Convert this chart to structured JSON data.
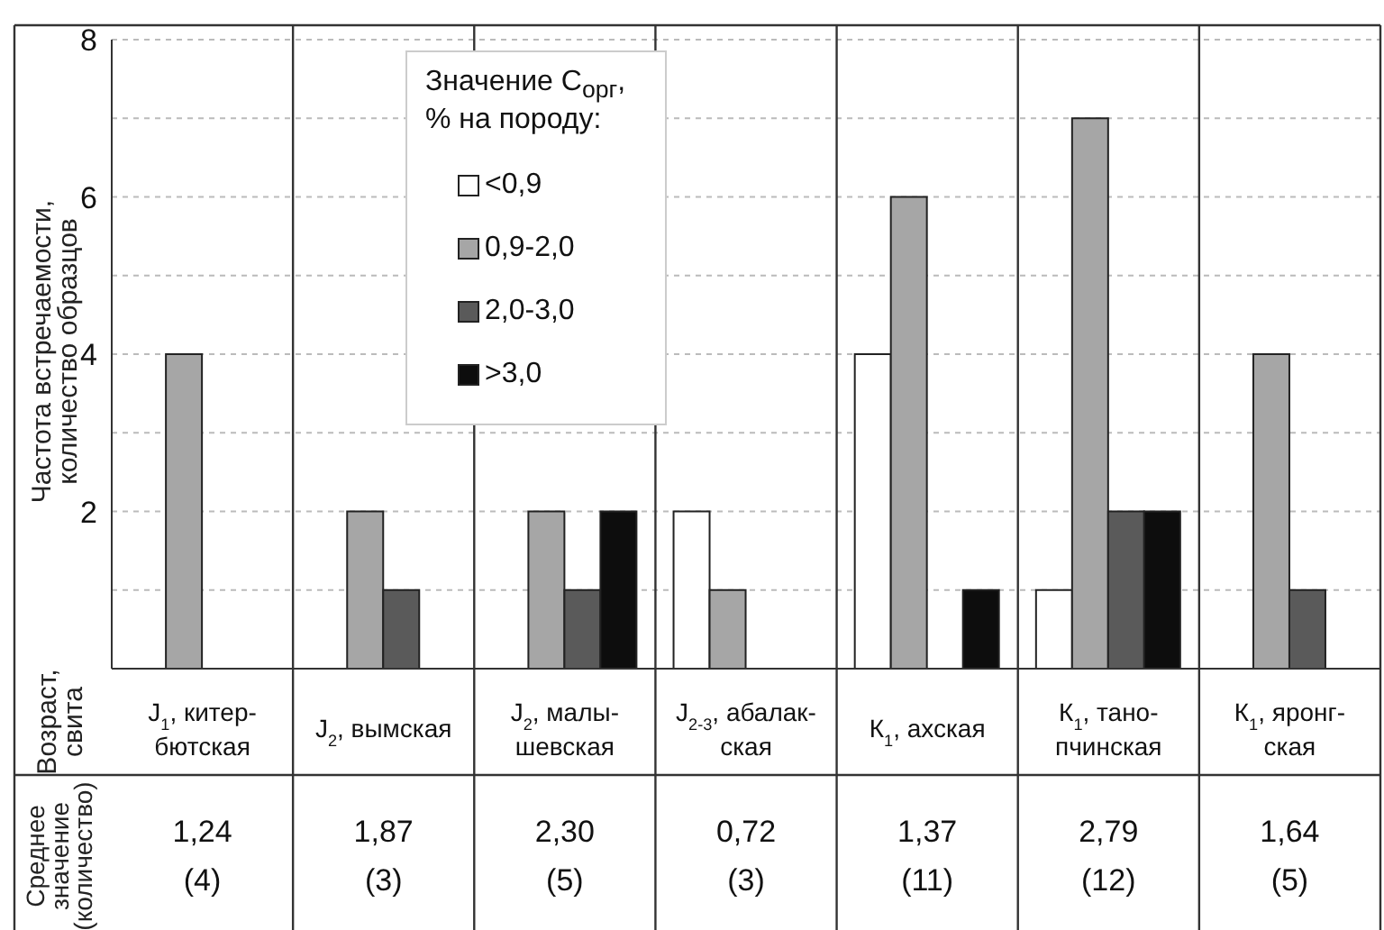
{
  "chart_data": {
    "type": "bar",
    "ylabel": "Частота встречаемости, количество образцов",
    "legend_title": "Значение C$_{орг}$, % на породу:",
    "categories": [
      "J$_{1}$, китер-бютская",
      "J$_{2}$, вымская",
      "J$_{2}$, малы-шевская",
      "J$_{2-3}$, абалак-ская",
      "К$_{1}$, ахская",
      "К$_{1}$, тано-пчинская",
      "К$_{1}$, яронг-ская"
    ],
    "series": [
      {
        "name": "<0,9",
        "color": "#ffffff",
        "values": [
          0,
          0,
          0,
          2,
          4,
          1,
          0
        ]
      },
      {
        "name": "0,9-2,0",
        "color": "#a6a6a6",
        "values": [
          4,
          2,
          2,
          1,
          6,
          7,
          4
        ]
      },
      {
        "name": "2,0-3,0",
        "color": "#5a5a5a",
        "values": [
          0,
          1,
          1,
          0,
          0,
          2,
          1
        ]
      },
      {
        "name": ">3,0",
        "color": "#0d0d0d",
        "values": [
          0,
          0,
          2,
          0,
          1,
          2,
          0
        ]
      }
    ],
    "ylim": [
      0,
      8
    ],
    "yticks": [
      {
        "value": 0,
        "label": null
      },
      {
        "value": 1,
        "label": null
      },
      2,
      {
        "value": 3,
        "label": null
      },
      4,
      {
        "value": 5,
        "label": null
      },
      6,
      {
        "value": 7,
        "label": null
      },
      8
    ],
    "grid": "y",
    "legend": "top",
    "annotations": [
      "Возраст, свита",
      "Среднее значение (количество)",
      "1,24",
      "(4)",
      "1,87",
      "(3)",
      "2,30",
      "(5)",
      "0,72",
      "(3)",
      "1,37",
      "(11)",
      "2,79",
      "(12)",
      "1,64",
      "(5)"
    ]
  }
}
